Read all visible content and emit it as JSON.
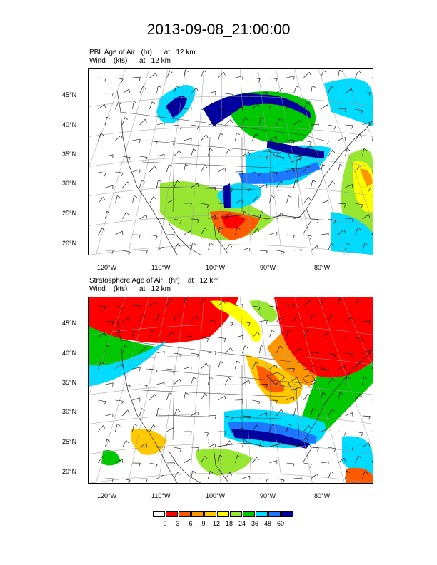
{
  "figure": {
    "title": "2013-09-08_21:00:00"
  },
  "panels": [
    {
      "id": "pbl",
      "title_line1": "PBL Age of Air   (hr)      at   12 km",
      "title_line2": "Wind    (kts)      at   12 km",
      "lat_labels": [
        "45°N",
        "40°N",
        "35°N",
        "30°N",
        "25°N",
        "20°N"
      ],
      "lon_labels": [
        "120°W",
        "110°W",
        "100°W",
        "90°W",
        "80°W"
      ]
    },
    {
      "id": "strat",
      "title_line1": "Stratosphere Age of Air   (hr)    at   12 km",
      "title_line2": "Wind    (kts)      at   12 km",
      "lat_labels": [
        "45°N",
        "40°N",
        "35°N",
        "30°N",
        "25°N",
        "20°N"
      ],
      "lon_labels": [
        "120°W",
        "110°W",
        "100°W",
        "90°W",
        "80°W"
      ]
    }
  ],
  "colorbar": {
    "labels": [
      "0",
      "3",
      "6",
      "9",
      "12",
      "18",
      "24",
      "36",
      "48",
      "60"
    ],
    "colors": [
      "#ffffff",
      "#ff0000",
      "#ff5a00",
      "#ff9600",
      "#ffc800",
      "#ffff00",
      "#96e632",
      "#00c800",
      "#00dcff",
      "#1e78ff",
      "#0000a0"
    ]
  }
}
